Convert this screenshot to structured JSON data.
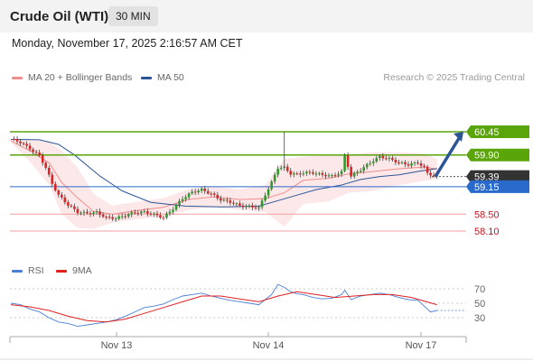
{
  "header": {
    "instrument": "Crude Oil (WTI)",
    "timeframe": "30 MIN"
  },
  "timestamp": "Monday, November 17, 2025 2:16:57 AM CET",
  "legend": {
    "bb_label": "MA 20 + Bollinger Bands",
    "ma50_label": "MA 50",
    "credit": "Research © 2025 Trading Central",
    "rsi_label": "RSI",
    "rsi_ma_label": "9MA"
  },
  "colors": {
    "bollinger": "#f08c8c",
    "ma50": "#2c5596",
    "resistance": "#5aa50a",
    "support_line": "#2a6acc",
    "current": "#333333",
    "projection_arrow": "#2c5596",
    "rsi": "#4a7fd6",
    "rsi_ma": "#e02020"
  },
  "chart_data": {
    "type": "candlestick",
    "x_ticks": [
      "Nov 13",
      "Nov 14",
      "Nov 17"
    ],
    "price_levels": [
      {
        "label": "60.45",
        "value": 60.45,
        "kind": "resistance"
      },
      {
        "label": "59.90",
        "value": 59.9,
        "kind": "resistance"
      },
      {
        "label": "59.39",
        "value": 59.39,
        "kind": "current"
      },
      {
        "label": "59.15",
        "value": 59.15,
        "kind": "pivot"
      },
      {
        "label": "58.50",
        "value": 58.5,
        "kind": "support"
      },
      {
        "label": "58.10",
        "value": 58.1,
        "kind": "support"
      }
    ],
    "price_path": [
      [
        0,
        60.28
      ],
      [
        3,
        60.2
      ],
      [
        6,
        60.05
      ],
      [
        9,
        59.88
      ],
      [
        11,
        59.6
      ],
      [
        13,
        59.22
      ],
      [
        15,
        58.95
      ],
      [
        18,
        58.72
      ],
      [
        21,
        58.55
      ],
      [
        24,
        58.52
      ],
      [
        27,
        58.54
      ],
      [
        30,
        58.42
      ],
      [
        33,
        58.4
      ],
      [
        36,
        58.47
      ],
      [
        39,
        58.54
      ],
      [
        42,
        58.55
      ],
      [
        45,
        58.49
      ],
      [
        48,
        58.42
      ],
      [
        51,
        58.63
      ],
      [
        54,
        58.87
      ],
      [
        57,
        59.02
      ],
      [
        60,
        59.08
      ],
      [
        63,
        58.98
      ],
      [
        66,
        58.84
      ],
      [
        69,
        58.79
      ],
      [
        72,
        58.7
      ],
      [
        75,
        58.68
      ],
      [
        78,
        58.65
      ],
      [
        80,
        58.96
      ],
      [
        82,
        59.25
      ],
      [
        84,
        59.6
      ],
      [
        86,
        59.6
      ],
      [
        88,
        59.46
      ],
      [
        90,
        59.44
      ],
      [
        92,
        59.48
      ],
      [
        95,
        59.48
      ],
      [
        98,
        59.43
      ],
      [
        101,
        59.4
      ],
      [
        104,
        59.5
      ],
      [
        105,
        59.88
      ],
      [
        107,
        59.4
      ],
      [
        110,
        59.55
      ],
      [
        113,
        59.72
      ],
      [
        116,
        59.86
      ],
      [
        119,
        59.81
      ],
      [
        122,
        59.72
      ],
      [
        125,
        59.67
      ],
      [
        128,
        59.72
      ],
      [
        130,
        59.6
      ],
      [
        131,
        59.47
      ],
      [
        133,
        59.41
      ],
      [
        134,
        59.39
      ]
    ],
    "ma50_path": [
      [
        0,
        60.27
      ],
      [
        9,
        60.26
      ],
      [
        15,
        60.15
      ],
      [
        20,
        59.9
      ],
      [
        28,
        59.4
      ],
      [
        35,
        59.05
      ],
      [
        44,
        58.78
      ],
      [
        55,
        58.69
      ],
      [
        66,
        58.67
      ],
      [
        78,
        58.69
      ],
      [
        84,
        58.82
      ],
      [
        90,
        58.95
      ],
      [
        96,
        59.08
      ],
      [
        104,
        59.19
      ],
      [
        110,
        59.32
      ],
      [
        116,
        59.39
      ],
      [
        122,
        59.43
      ],
      [
        128,
        59.51
      ],
      [
        134,
        59.58
      ]
    ],
    "bollinger_upper": [
      [
        0,
        60.27
      ],
      [
        6,
        60.26
      ],
      [
        12,
        60.23
      ],
      [
        16,
        60.0
      ],
      [
        21,
        59.6
      ],
      [
        26,
        58.98
      ],
      [
        32,
        58.7
      ],
      [
        40,
        58.8
      ],
      [
        48,
        58.88
      ],
      [
        56,
        59.1
      ],
      [
        64,
        59.15
      ],
      [
        72,
        59.09
      ],
      [
        80,
        59.19
      ],
      [
        86,
        59.81
      ],
      [
        92,
        59.86
      ],
      [
        100,
        59.9
      ],
      [
        106,
        59.9
      ],
      [
        114,
        59.97
      ],
      [
        122,
        59.97
      ],
      [
        130,
        59.94
      ],
      [
        134,
        59.8
      ]
    ],
    "bollinger_lower": [
      [
        0,
        60.2
      ],
      [
        6,
        59.74
      ],
      [
        12,
        59.2
      ],
      [
        16,
        58.5
      ],
      [
        21,
        58.17
      ],
      [
        26,
        58.15
      ],
      [
        32,
        58.3
      ],
      [
        40,
        58.38
      ],
      [
        48,
        58.45
      ],
      [
        56,
        58.6
      ],
      [
        64,
        58.67
      ],
      [
        72,
        58.6
      ],
      [
        80,
        58.55
      ],
      [
        86,
        58.2
      ],
      [
        92,
        58.74
      ],
      [
        100,
        58.8
      ],
      [
        106,
        59.0
      ],
      [
        114,
        59.05
      ],
      [
        122,
        59.18
      ],
      [
        130,
        59.29
      ],
      [
        134,
        59.33
      ]
    ],
    "projection": {
      "from": 59.39,
      "to": 60.45
    },
    "rsi": {
      "levels": [
        70,
        50,
        30
      ],
      "rsi_path": [
        [
          0,
          50
        ],
        [
          3,
          48
        ],
        [
          6,
          42
        ],
        [
          9,
          38
        ],
        [
          12,
          30
        ],
        [
          15,
          24
        ],
        [
          18,
          22
        ],
        [
          21,
          18
        ],
        [
          24,
          20
        ],
        [
          27,
          22
        ],
        [
          30,
          24
        ],
        [
          33,
          27
        ],
        [
          36,
          32
        ],
        [
          39,
          38
        ],
        [
          42,
          44
        ],
        [
          45,
          46
        ],
        [
          48,
          49
        ],
        [
          51,
          55
        ],
        [
          54,
          60
        ],
        [
          57,
          62
        ],
        [
          60,
          64
        ],
        [
          63,
          60
        ],
        [
          66,
          57
        ],
        [
          69,
          54
        ],
        [
          72,
          52
        ],
        [
          75,
          50
        ],
        [
          78,
          48
        ],
        [
          80,
          55
        ],
        [
          82,
          62
        ],
        [
          84,
          76
        ],
        [
          86,
          72
        ],
        [
          88,
          66
        ],
        [
          90,
          63
        ],
        [
          92,
          62
        ],
        [
          95,
          58
        ],
        [
          98,
          56
        ],
        [
          101,
          57
        ],
        [
          104,
          62
        ],
        [
          105,
          68
        ],
        [
          107,
          55
        ],
        [
          110,
          60
        ],
        [
          113,
          62
        ],
        [
          116,
          64
        ],
        [
          119,
          62
        ],
        [
          122,
          58
        ],
        [
          125,
          55
        ],
        [
          128,
          54
        ],
        [
          130,
          46
        ],
        [
          132,
          38
        ],
        [
          134,
          40
        ]
      ],
      "ma_path": [
        [
          0,
          48
        ],
        [
          6,
          45
        ],
        [
          12,
          40
        ],
        [
          18,
          32
        ],
        [
          24,
          26
        ],
        [
          30,
          24
        ],
        [
          36,
          28
        ],
        [
          42,
          36
        ],
        [
          48,
          44
        ],
        [
          54,
          52
        ],
        [
          60,
          60
        ],
        [
          66,
          60
        ],
        [
          72,
          56
        ],
        [
          78,
          52
        ],
        [
          84,
          60
        ],
        [
          90,
          66
        ],
        [
          96,
          62
        ],
        [
          102,
          58
        ],
        [
          108,
          60
        ],
        [
          114,
          62
        ],
        [
          120,
          62
        ],
        [
          126,
          58
        ],
        [
          134,
          48
        ]
      ]
    }
  }
}
